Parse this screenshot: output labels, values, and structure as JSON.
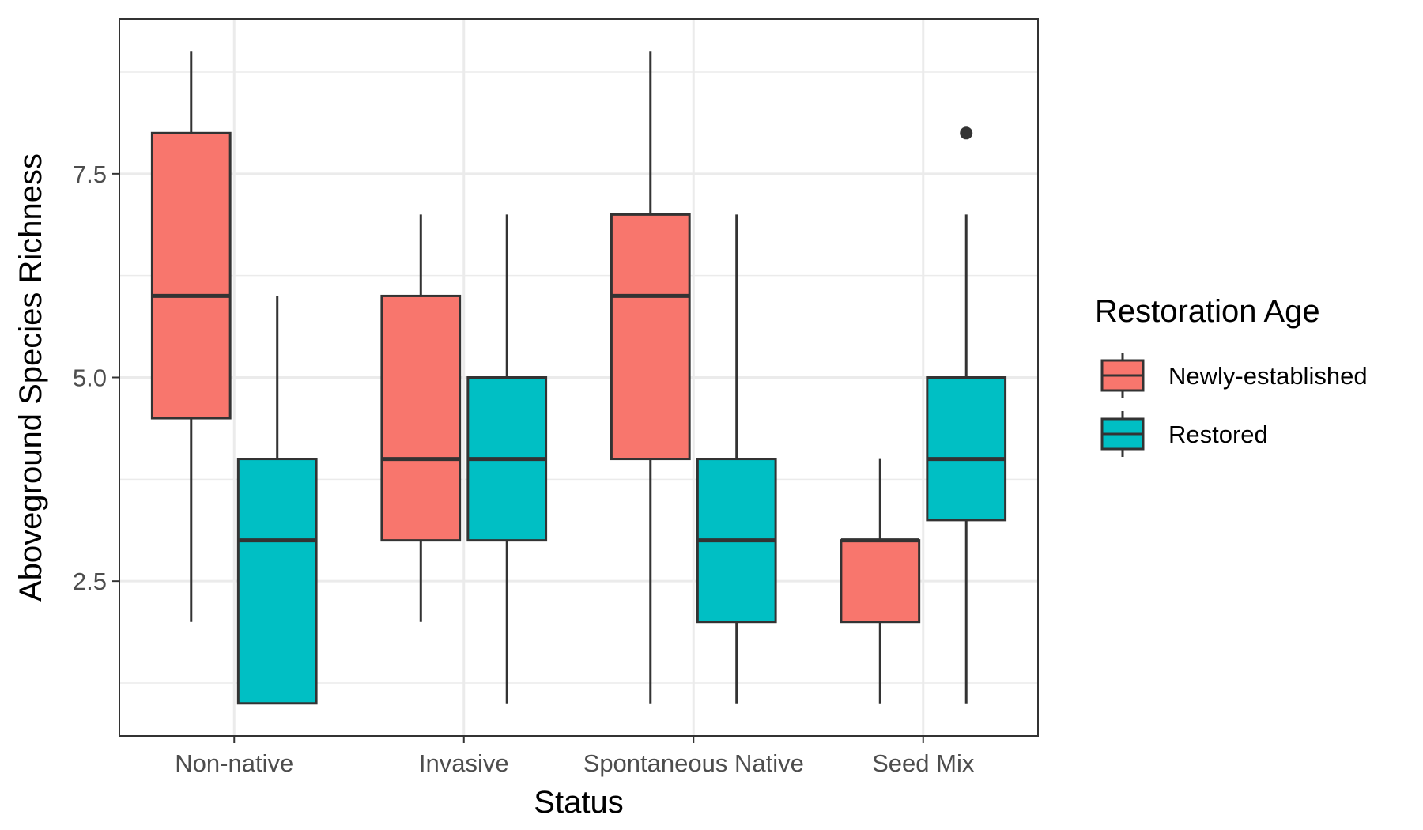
{
  "chart_data": {
    "type": "box",
    "xlabel": "Status",
    "ylabel": "Aboveground Species Richness",
    "categories": [
      "Non-native",
      "Invasive",
      "Spontaneous Native",
      "Seed Mix"
    ],
    "ylim": [
      0.6,
      9.4
    ],
    "yticks": [
      2.5,
      5.0,
      7.5
    ],
    "ytick_labels": [
      "2.5",
      "5.0",
      "7.5"
    ],
    "grid": true,
    "legend": {
      "title": "Restoration Age",
      "position": "right",
      "items": [
        "Newly-established",
        "Restored"
      ]
    },
    "series": [
      {
        "name": "Newly-established",
        "color": "#F8766D",
        "boxes": [
          {
            "min": 2,
            "q1": 4.5,
            "median": 6,
            "q3": 8,
            "max": 9,
            "outliers": []
          },
          {
            "min": 2,
            "q1": 3,
            "median": 4,
            "q3": 6,
            "max": 7,
            "outliers": []
          },
          {
            "min": 1,
            "q1": 4,
            "median": 6,
            "q3": 7,
            "max": 9,
            "outliers": []
          },
          {
            "min": 1,
            "q1": 2,
            "median": 3,
            "q3": 3,
            "max": 4,
            "outliers": []
          }
        ]
      },
      {
        "name": "Restored",
        "color": "#00BFC4",
        "boxes": [
          {
            "min": 1,
            "q1": 1,
            "median": 3,
            "q3": 4,
            "max": 6,
            "outliers": []
          },
          {
            "min": 1,
            "q1": 3,
            "median": 4,
            "q3": 5,
            "max": 7,
            "outliers": []
          },
          {
            "min": 1,
            "q1": 2,
            "median": 3,
            "q3": 4,
            "max": 7,
            "outliers": []
          },
          {
            "min": 1,
            "q1": 3.25,
            "median": 4,
            "q3": 5,
            "max": 7,
            "outliers": [
              8
            ]
          }
        ]
      }
    ]
  }
}
